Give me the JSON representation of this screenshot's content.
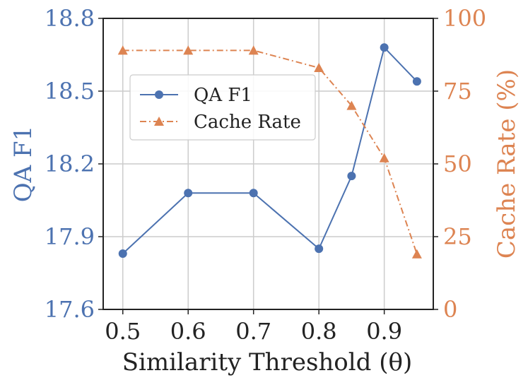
{
  "chart_data": {
    "type": "line",
    "xlabel": "Similarity Threshold (θ)",
    "x": [
      0.5,
      0.6,
      0.7,
      0.8,
      0.85,
      0.9,
      0.95
    ],
    "x_ticks": [
      "0.5",
      "0.6",
      "0.7",
      "0.8",
      "0.9"
    ],
    "x_tick_values": [
      0.5,
      0.6,
      0.7,
      0.8,
      0.9
    ],
    "xlim": [
      0.47,
      0.975
    ],
    "y_left": {
      "label": "QA F1",
      "lim": [
        17.6,
        18.8
      ],
      "ticks": [
        "17.6",
        "17.9",
        "18.2",
        "18.5",
        "18.8"
      ],
      "tick_values": [
        17.6,
        17.9,
        18.2,
        18.5,
        18.8
      ],
      "color": "#4c72b0"
    },
    "y_right": {
      "label": "Cache Rate (%)",
      "lim": [
        0,
        100
      ],
      "ticks": [
        "0",
        "25",
        "50",
        "75",
        "100"
      ],
      "tick_values": [
        0,
        25,
        50,
        75,
        100
      ],
      "color": "#dd8452"
    },
    "series": [
      {
        "name": "QA F1",
        "axis": "left",
        "marker": "circle",
        "linestyle": "solid",
        "color": "#4c72b0",
        "values": [
          17.83,
          18.08,
          18.08,
          17.85,
          18.15,
          18.68,
          18.54
        ]
      },
      {
        "name": "Cache Rate",
        "axis": "right",
        "marker": "triangle",
        "linestyle": "dashdot",
        "color": "#dd8452",
        "values": [
          89,
          89,
          89,
          83,
          70,
          52,
          19
        ]
      }
    ],
    "grid": true,
    "legend_position": "upper-left"
  }
}
